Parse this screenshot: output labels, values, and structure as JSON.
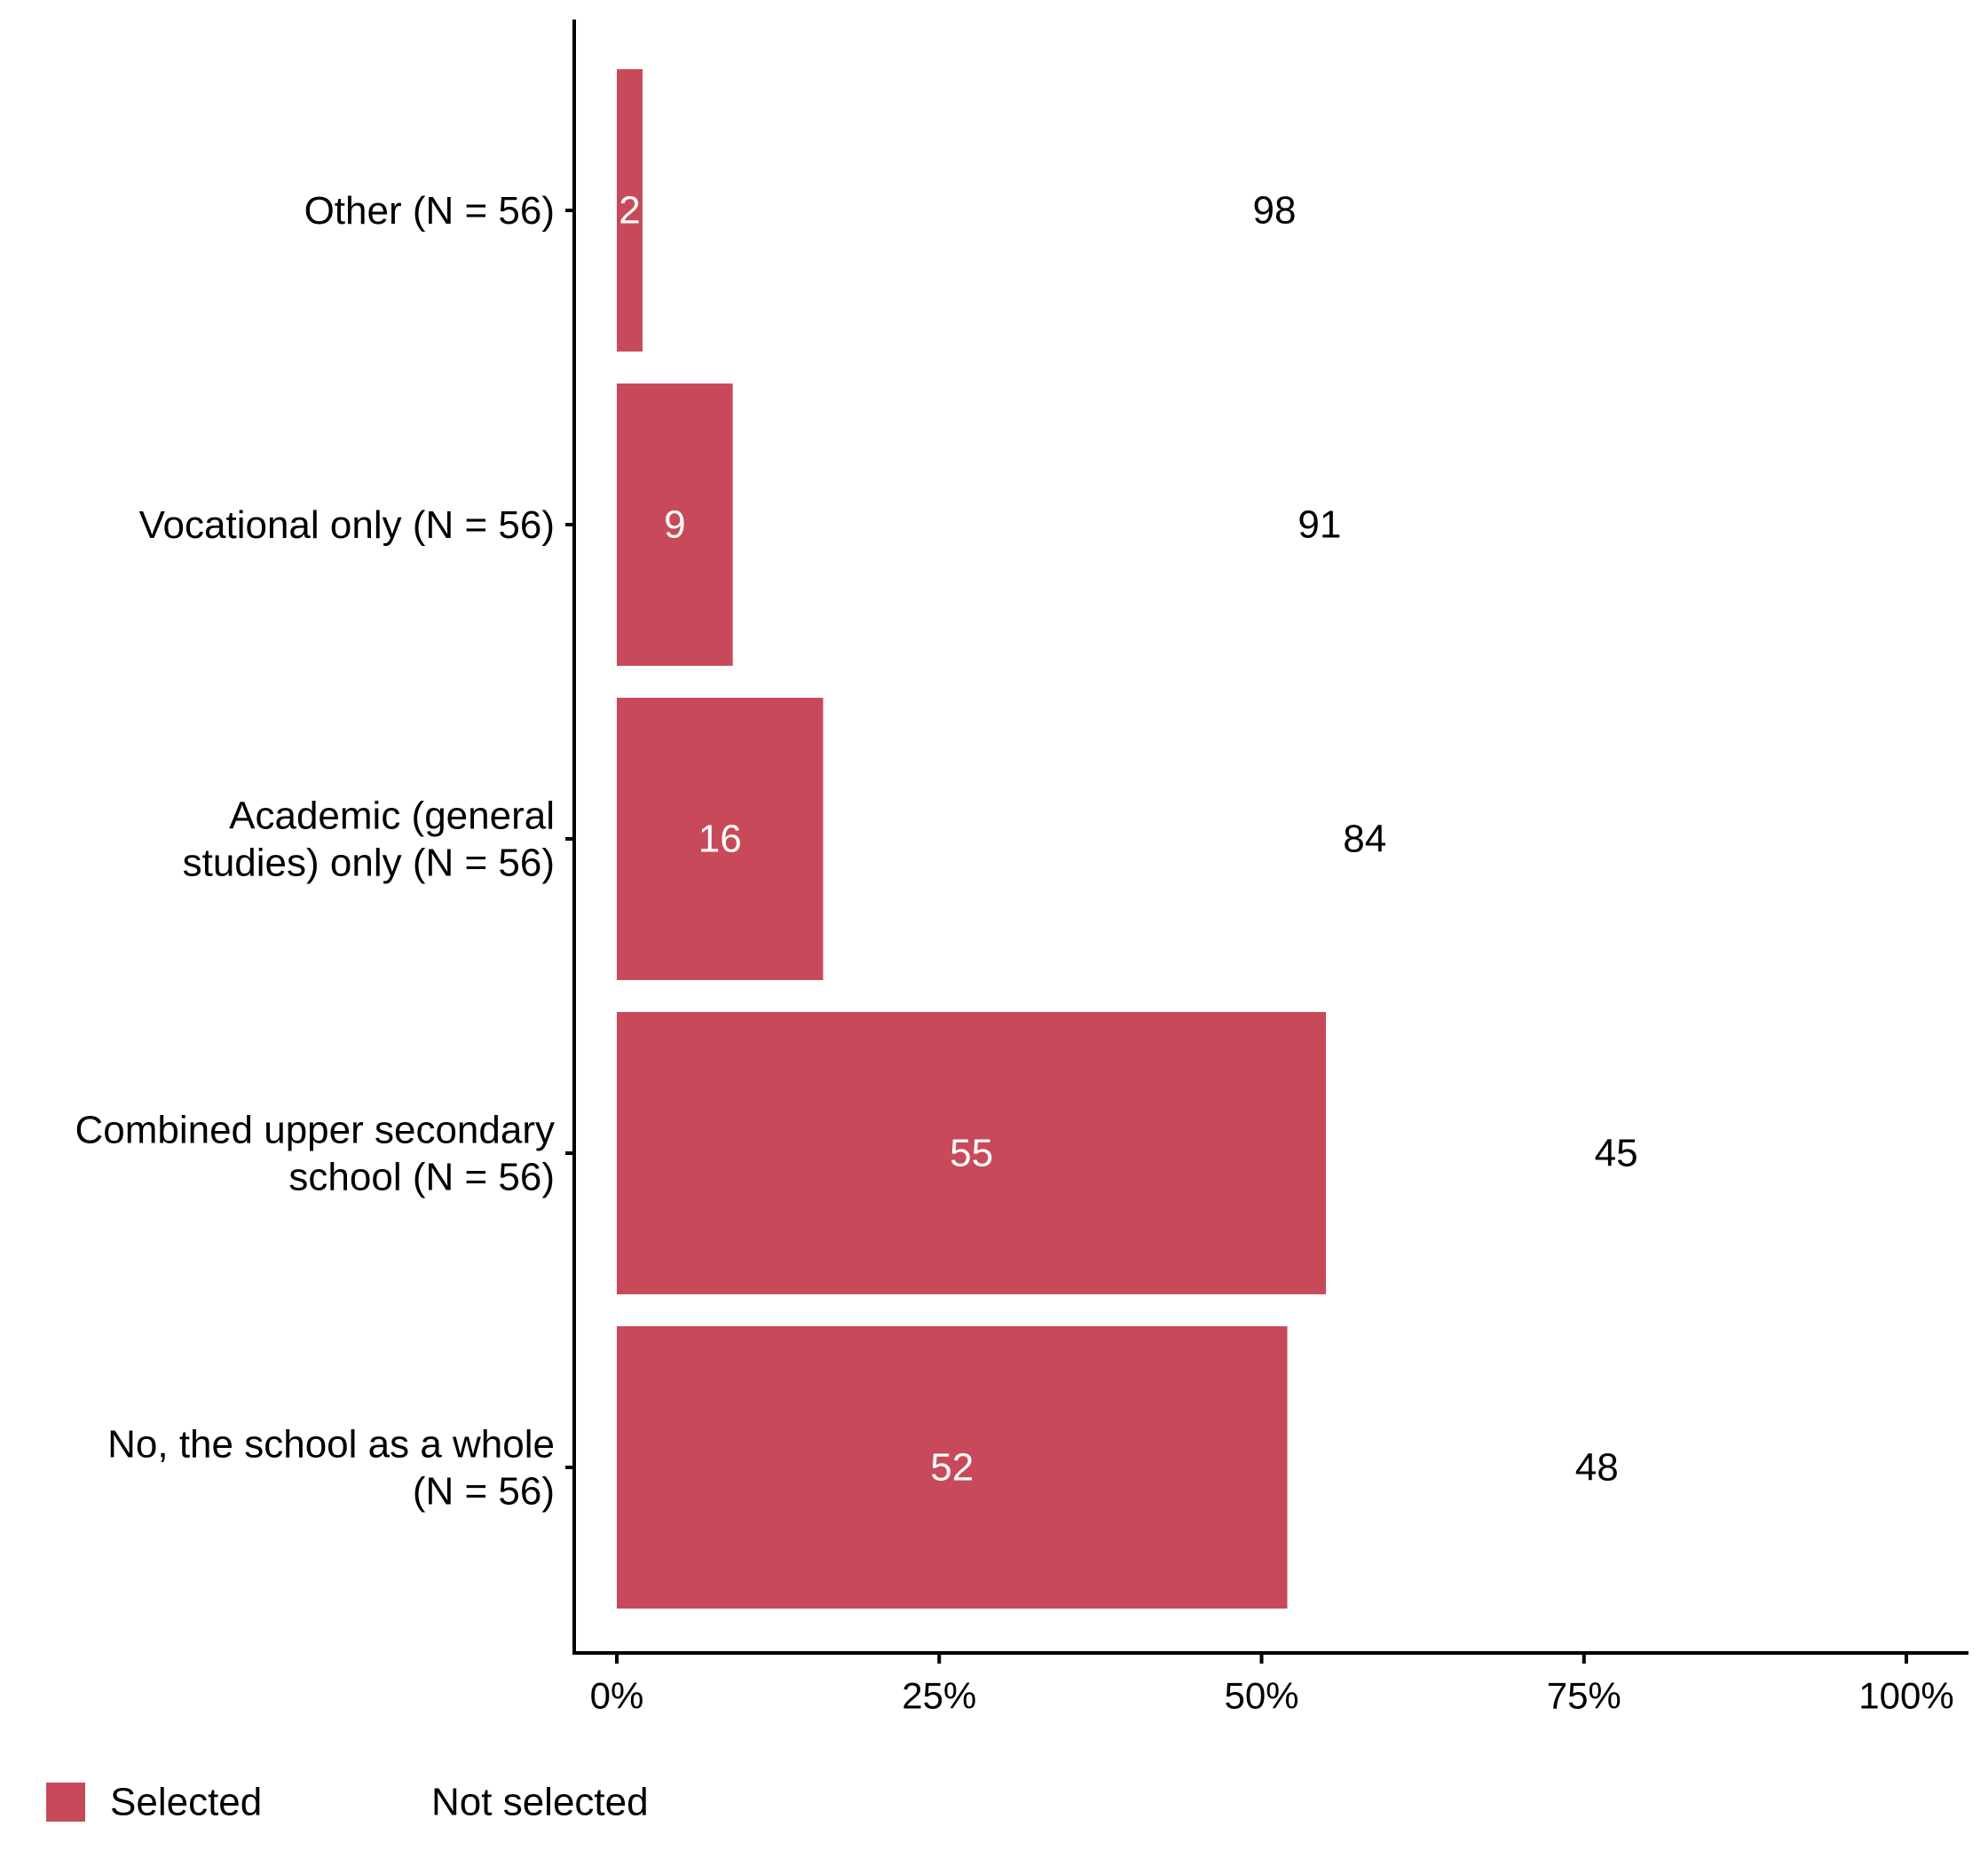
{
  "chart_data": {
    "type": "bar",
    "orientation": "horizontal",
    "stacked": true,
    "categories": [
      [
        "Other (N = 56)"
      ],
      [
        "Vocational only (N = 56)"
      ],
      [
        "Academic (general",
        "studies) only (N = 56)"
      ],
      [
        "Combined upper secondary",
        "school (N = 56)"
      ],
      [
        "No, the school as a whole",
        "(N = 56)"
      ]
    ],
    "series": [
      {
        "name": "Selected",
        "values": [
          2,
          9,
          16,
          55,
          52
        ],
        "color": "#c84a5a",
        "label_color": "#ffffff"
      },
      {
        "name": "Not selected",
        "values": [
          98,
          91,
          84,
          45,
          48
        ],
        "color": "#ffffff",
        "label_color": "#000000"
      }
    ],
    "xlim": [
      0,
      100
    ],
    "xticks": [
      0,
      25,
      50,
      75,
      100
    ],
    "xtick_labels": [
      "0%",
      "25%",
      "50%",
      "75%",
      "100%"
    ],
    "grid": false,
    "legend_position": "bottom-left"
  }
}
